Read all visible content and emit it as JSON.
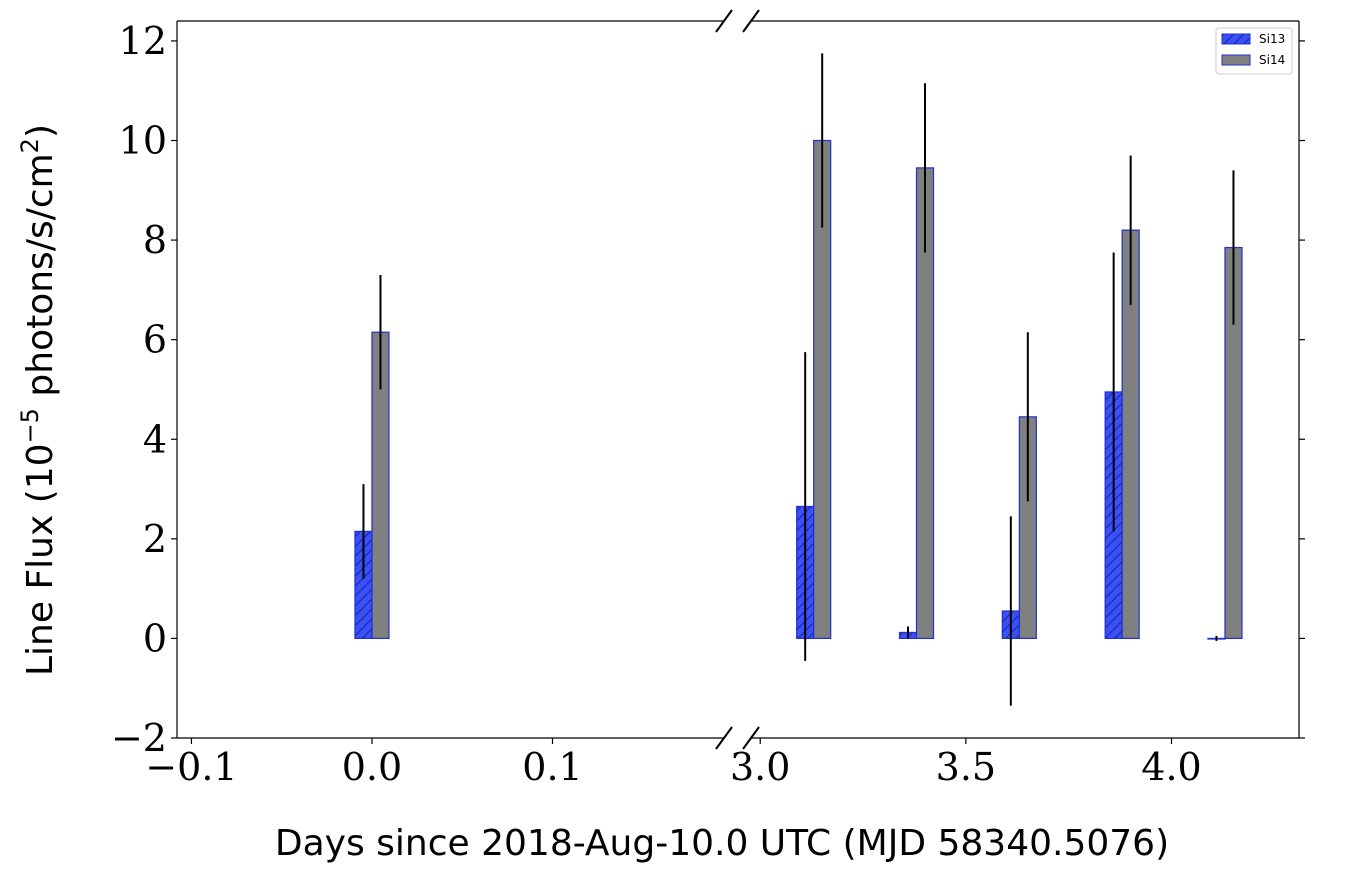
{
  "chart_data": {
    "type": "bar",
    "title": "",
    "xlabel": "Days since 2018-Aug-10.0 UTC (MJD 58340.5076)",
    "ylabel": {
      "prefix": "Line Flux (10",
      "exponent": "−5",
      "middle": " photons/s/cm",
      "power": "2",
      "suffix": ")"
    },
    "ylim": [
      -2,
      12.4
    ],
    "yticks": [
      -2,
      0,
      2,
      4,
      6,
      8,
      10,
      12
    ],
    "ytick_labels": [
      "−2",
      "0",
      "2",
      "4",
      "6",
      "8",
      "10",
      "12"
    ],
    "broken_x_axis": true,
    "x_segments": [
      {
        "xlim": [
          -0.108,
          0.195
        ],
        "ticks": [
          -0.1,
          0.0,
          0.1
        ],
        "tick_labels": [
          "−0.1",
          "0.0",
          "0.1"
        ]
      },
      {
        "xlim": [
          2.98,
          4.31
        ],
        "ticks": [
          3.0,
          3.5,
          4.0
        ],
        "tick_labels": [
          "3.0",
          "3.5",
          "4.0"
        ]
      }
    ],
    "legend_placement": "top-right",
    "grid": false,
    "series": [
      {
        "name": "Si13",
        "color": "#3b50f5",
        "edge": "#1f2fd0",
        "hatch": true,
        "points": [
          {
            "x": 0.0,
            "y": 2.15,
            "err": 0.95
          },
          {
            "x": 3.13,
            "y": 2.65,
            "err": 3.1
          },
          {
            "x": 3.38,
            "y": 0.12,
            "err": 0.12
          },
          {
            "x": 3.63,
            "y": 0.55,
            "err": 1.9
          },
          {
            "x": 3.88,
            "y": 4.95,
            "err": 2.8
          },
          {
            "x": 4.13,
            "y": 0.0,
            "err": 0.05
          }
        ]
      },
      {
        "name": "Si14",
        "color": "#808080",
        "edge": "#1f2fd0",
        "hatch": false,
        "points": [
          {
            "x": 0.0,
            "y": 6.15,
            "err": 1.15
          },
          {
            "x": 3.13,
            "y": 10.0,
            "err": 1.75
          },
          {
            "x": 3.38,
            "y": 9.45,
            "err": 1.7
          },
          {
            "x": 3.63,
            "y": 4.45,
            "err": 1.7
          },
          {
            "x": 3.88,
            "y": 8.2,
            "err": 1.5
          },
          {
            "x": 4.13,
            "y": 7.85,
            "err": 1.55
          }
        ]
      }
    ]
  }
}
